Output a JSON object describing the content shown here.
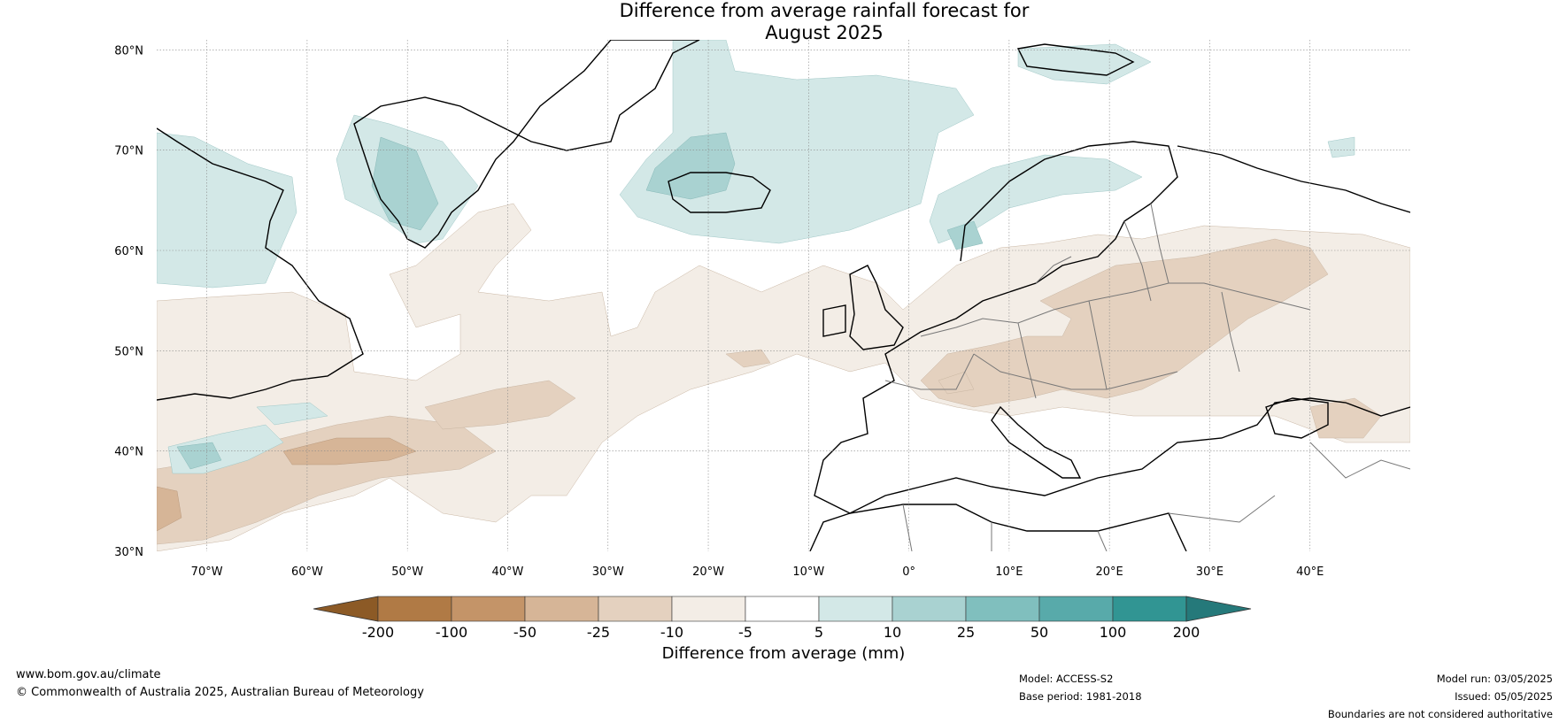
{
  "title": {
    "line1": "Difference from average rainfall forecast for",
    "line2": "August 2025"
  },
  "map": {
    "lat_labels": [
      "80°N",
      "70°N",
      "60°N",
      "50°N",
      "40°N",
      "30°N"
    ],
    "lon_labels": [
      "70°W",
      "60°W",
      "50°W",
      "40°W",
      "30°W",
      "20°W",
      "10°W",
      "0°",
      "10°E",
      "20°E",
      "30°E",
      "40°E"
    ],
    "lon_range": [
      -75,
      50
    ],
    "lat_range": [
      30,
      81
    ],
    "colors": {
      "dry_light": "#f3ede6",
      "dry_mid": "#e4d1bf",
      "dry_strong": "#d6b597",
      "wet_light": "#d3e8e7",
      "wet_mid": "#a9d2d1",
      "coast": "#000000",
      "border": "#777777"
    }
  },
  "legend": {
    "ticks": [
      "-200",
      "-100",
      "-50",
      "-25",
      "-10",
      "-5",
      "5",
      "10",
      "25",
      "50",
      "100",
      "200"
    ],
    "colors": [
      "#8c5a26",
      "#b07a45",
      "#c49468",
      "#d6b597",
      "#e4d1bf",
      "#f3ede6",
      "#ffffff",
      "#d3e8e7",
      "#a9d2d1",
      "#80bfbe",
      "#58aaaa",
      "#319593",
      "#25797a"
    ],
    "label": "Difference from average (mm)"
  },
  "footer": {
    "url": "www.bom.gov.au/climate",
    "copyright": "© Commonwealth of Australia 2025, Australian Bureau of Meteorology",
    "model": "Model: ACCESS-S2",
    "base_period": "Base period: 1981-2018",
    "model_run": "Model run: 03/05/2025",
    "issued": "Issued: 05/05/2025",
    "disclaimer": "Boundaries are not considered authoritative"
  }
}
